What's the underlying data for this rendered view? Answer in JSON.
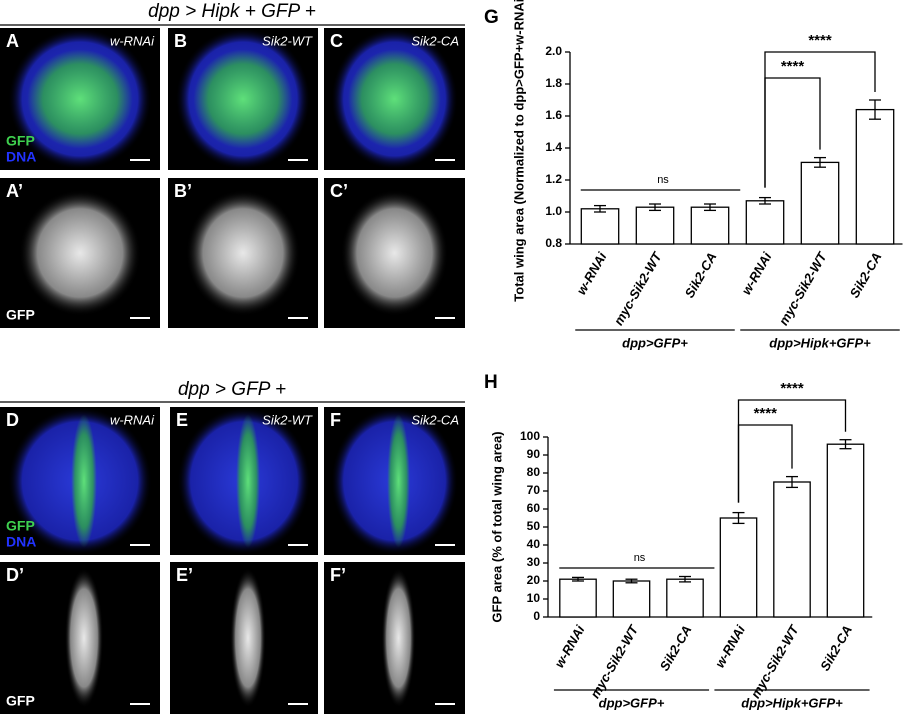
{
  "figure": {
    "title_top": "dpp > Hipk + GFP +",
    "title_bottom": "dpp > GFP +",
    "stain_labels": [
      "GFP",
      "DNA"
    ],
    "panels": [
      {
        "letter": "A",
        "label": "w-RNAi"
      },
      {
        "letter": "B",
        "label": "Sik2-WT"
      },
      {
        "letter": "C",
        "label": "Sik2-CA"
      },
      {
        "letter": "A’"
      },
      {
        "letter": "B’"
      },
      {
        "letter": "C’"
      },
      {
        "letter": "D",
        "label": "w-RNAi"
      },
      {
        "letter": "E",
        "label": "Sik2-WT"
      },
      {
        "letter": "F",
        "label": "Sik2-CA"
      },
      {
        "letter": "D’"
      },
      {
        "letter": "E’"
      },
      {
        "letter": "F’"
      }
    ]
  },
  "chart_data": [
    {
      "type": "bar",
      "panel": "G",
      "y_label": "Total wing area (Normalized to dpp>GFP+w-RNAi)",
      "categories": [
        "w-RNAi",
        "myc-Sik2-WT",
        "Sik2-CA",
        "w-RNAi",
        "myc-Sik2-WT",
        "Sik2-CA"
      ],
      "values": [
        1.02,
        1.03,
        1.03,
        1.07,
        1.31,
        1.64
      ],
      "errors": [
        0.02,
        0.02,
        0.02,
        0.02,
        0.03,
        0.06
      ],
      "groups": [
        "dpp>GFP+",
        "dpp>Hipk+GFP+"
      ],
      "annotations": [
        "ns",
        "****",
        "****"
      ],
      "ylim": [
        0.8,
        2.0
      ],
      "yticks": [
        0.8,
        {
          "value": 1,
          "label": "1.0"
        },
        1.2,
        1.4,
        1.6,
        1.8,
        {
          "value": 2,
          "label": "2.0"
        }
      ]
    },
    {
      "type": "bar",
      "panel": "H",
      "y_label": "GFP area (% of total wing area)",
      "categories": [
        "w-RNAi",
        "myc-Sik2-WT",
        "Sik2-CA",
        "w-RNAi",
        "myc-Sik2-WT",
        "Sik2-CA"
      ],
      "values": [
        21,
        20,
        21,
        55,
        75,
        96
      ],
      "errors": [
        1,
        1,
        1.5,
        3,
        3,
        2.5
      ],
      "groups": [
        "dpp>GFP+",
        "dpp>Hipk+GFP+"
      ],
      "annotations": [
        "ns",
        "****",
        "****"
      ],
      "ylim": [
        0,
        100
      ],
      "yticks": [
        0,
        10,
        20,
        30,
        40,
        50,
        60,
        70,
        80,
        90,
        100
      ]
    }
  ]
}
